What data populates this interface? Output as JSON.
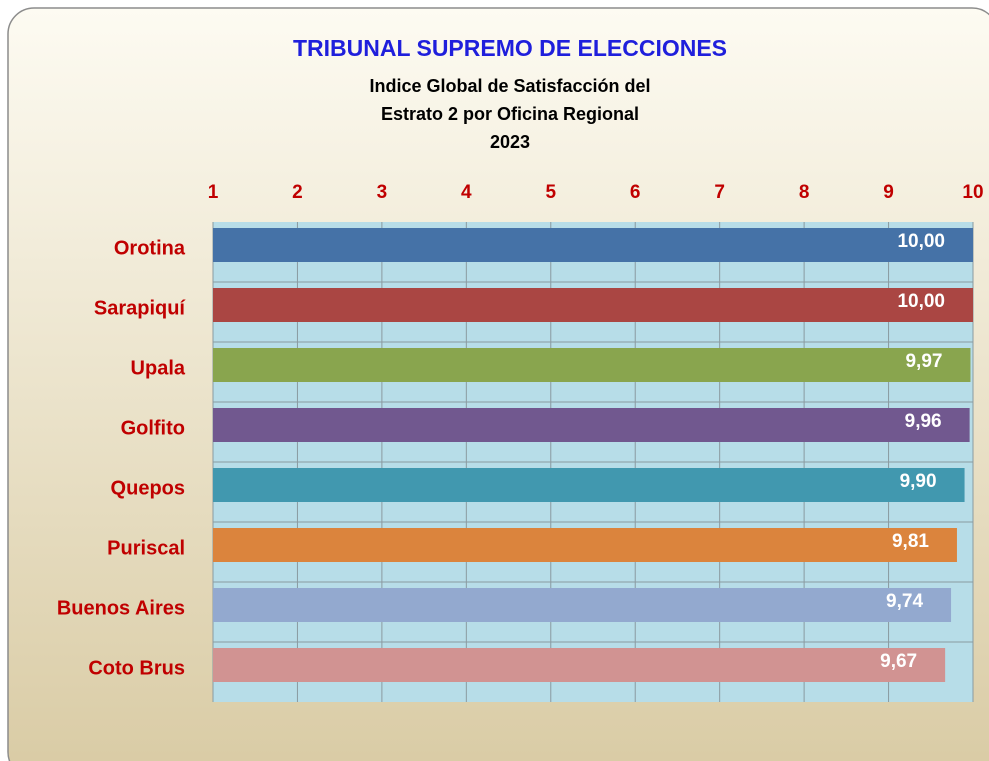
{
  "chart_data": {
    "type": "hbar",
    "title": "TRIBUNAL SUPREMO DE ELECCIONES",
    "subtitle": [
      "Indice Global de Satisfacción del",
      "Estrato 2 por Oficina Regional",
      "2023"
    ],
    "categories": [
      "Orotina",
      "Sarapiquí",
      "Upala",
      "Golfito",
      "Quepos",
      "Puriscal",
      "Buenos Aires",
      "Coto Brus"
    ],
    "values": [
      10.0,
      10.0,
      9.97,
      9.96,
      9.9,
      9.81,
      9.74,
      9.67
    ],
    "value_labels": [
      "10,00",
      "10,00",
      "9,97",
      "9,96",
      "9,90",
      "9,81",
      "9,74",
      "9,67"
    ],
    "colors": [
      "#4572a7",
      "#aa4643",
      "#89a54e",
      "#71588f",
      "#4198af",
      "#db843d",
      "#93a9cf",
      "#d19392"
    ],
    "xlim": [
      1,
      10
    ],
    "xticks": [
      1,
      2,
      3,
      4,
      5,
      6,
      7,
      8,
      9,
      10
    ],
    "grid": true
  }
}
